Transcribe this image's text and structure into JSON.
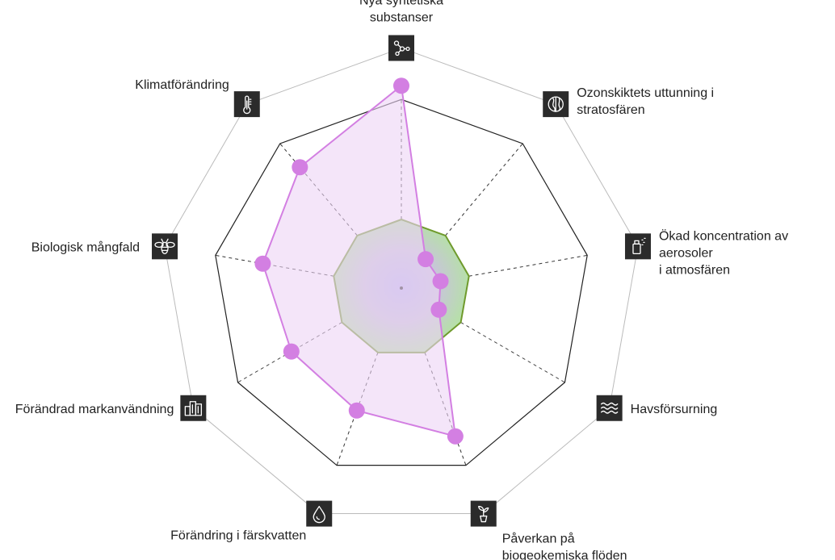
{
  "chart_data": {
    "type": "radar",
    "axes": [
      {
        "label": [
          "Nya syntetiska",
          "substanser"
        ],
        "icon": "molecule-icon"
      },
      {
        "label": [
          "Ozonskiktets uttunning i",
          "stratosfären"
        ],
        "icon": "globe-icon"
      },
      {
        "label": [
          "Ökad koncentration av",
          "aerosoler",
          "i atmosfären"
        ],
        "icon": "spray-can-icon"
      },
      {
        "label": [
          "Havsförsurning"
        ],
        "icon": "waves-icon"
      },
      {
        "label": [
          "Påverkan på",
          "biogeokemiska flöden"
        ],
        "icon": "sprout-icon"
      },
      {
        "label": [
          "Förändring i färskvatten"
        ],
        "icon": "water-drop-icon"
      },
      {
        "label": [
          "Förändrad markanvändning"
        ],
        "icon": "buildings-icon"
      },
      {
        "label": [
          "Biologisk mångfald"
        ],
        "icon": "bee-icon"
      },
      {
        "label": [
          "Klimatförändring"
        ],
        "icon": "thermometer-icon"
      }
    ],
    "safe_boundary": 1.0,
    "rings": [
      1.0,
      2.75,
      3.5
    ],
    "values": [
      2.95,
      0.55,
      0.58,
      0.63,
      2.3,
      1.9,
      1.85,
      2.05,
      2.3
    ],
    "colors": {
      "values_line": "#d37fe2",
      "values_fill": "#ecd3f5",
      "values_point": "#d37fe2",
      "boundary_line": "#6f9a2c",
      "outer_ring": "#bbbbbb",
      "main_ring": "#222222",
      "icon_bg": "#2b2b2b"
    }
  }
}
